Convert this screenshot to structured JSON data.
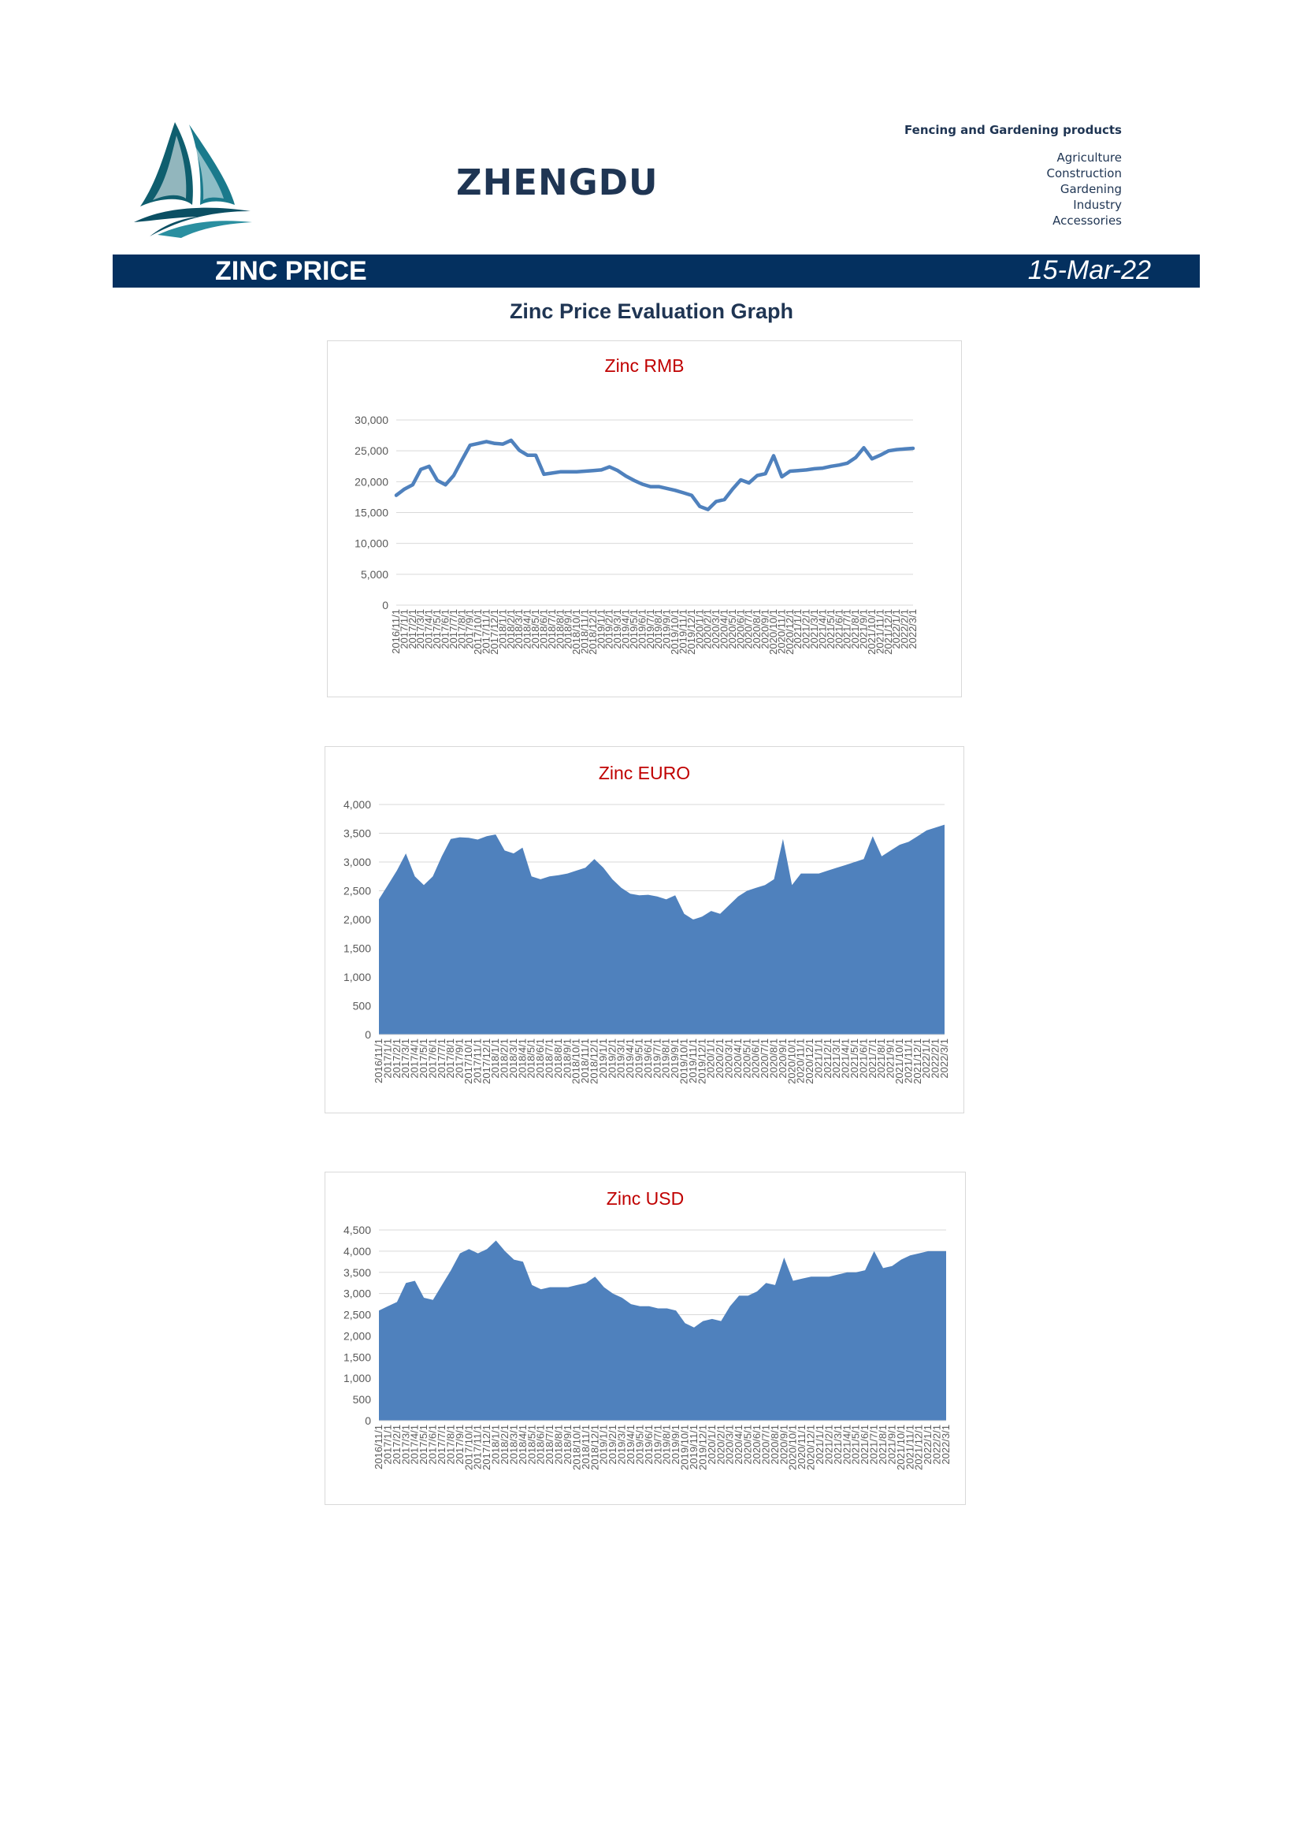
{
  "header": {
    "brand": "ZHENGDU",
    "tagline": "Fencing and Gardening products",
    "categories": [
      "Agriculture",
      "Construction",
      "Gardening",
      "Industry",
      "Accessories"
    ]
  },
  "banner": {
    "title": "ZINC PRICE",
    "date": "15-Mar-22"
  },
  "section_title": "Zinc Price Evaluation Graph",
  "colors": {
    "navy": "#04305f",
    "series": "#4f81bd",
    "title_red": "#c00000"
  },
  "x_labels": [
    "2016/11/1",
    "2017/1/1",
    "2017/2/1",
    "2017/3/1",
    "2017/4/1",
    "2017/5/1",
    "2017/6/1",
    "2017/7/1",
    "2017/8/1",
    "2017/9/1",
    "2017/10/1",
    "2017/11/1",
    "2017/12/1",
    "2018/1/1",
    "2018/2/1",
    "2018/3/1",
    "2018/4/1",
    "2018/5/1",
    "2018/6/1",
    "2018/7/1",
    "2018/8/1",
    "2018/9/1",
    "2018/10/1",
    "2018/11/1",
    "2018/12/1",
    "2019/1/1",
    "2019/2/1",
    "2019/3/1",
    "2019/4/1",
    "2019/5/1",
    "2019/6/1",
    "2019/7/1",
    "2019/8/1",
    "2019/9/1",
    "2019/10/1",
    "2019/11/1",
    "2019/12/1",
    "2020/1/1",
    "2020/2/1",
    "2020/3/1",
    "2020/4/1",
    "2020/5/1",
    "2020/6/1",
    "2020/7/1",
    "2020/8/1",
    "2020/9/1",
    "2020/10/1",
    "2020/11/1",
    "2020/12/1",
    "2021/1/1",
    "2021/2/1",
    "2021/3/1",
    "2021/4/1",
    "2021/5/1",
    "2021/6/1",
    "2021/7/1",
    "2021/8/1",
    "2021/9/1",
    "2021/10/1",
    "2021/11/1",
    "2021/12/1",
    "2022/1/1",
    "2022/2/1",
    "2022/3/1"
  ],
  "chart_data": [
    {
      "type": "line",
      "title": "Zinc RMB",
      "ylim": [
        0,
        30000
      ],
      "yticks": [
        0,
        5000,
        10000,
        15000,
        20000,
        25000,
        30000
      ],
      "y_tick_labels": [
        "0",
        "5,000",
        "10,000",
        "15,000",
        "20,000",
        "25,000",
        "30,000"
      ],
      "grid": true,
      "series": [
        {
          "values": [
            17800,
            18800,
            19500,
            22000,
            22500,
            20200,
            19500,
            21000,
            23500,
            25900,
            26200,
            26500,
            26200,
            26100,
            26700,
            25100,
            24300,
            24300,
            21200,
            21400,
            21600,
            21600,
            21600,
            21700,
            21800,
            21900,
            22400,
            21800,
            20900,
            20200,
            19600,
            19200,
            19200,
            18900,
            18600,
            18200,
            17800,
            16000,
            15500,
            16800,
            17100,
            18800,
            20300,
            19800,
            21000,
            21300,
            24200,
            20800,
            21700,
            21800,
            21900,
            22100,
            22200,
            22500,
            22700,
            23000,
            23900,
            25500,
            23700,
            24300,
            25000,
            25200,
            25300,
            25400
          ]
        }
      ]
    },
    {
      "type": "area",
      "title": "Zinc EURO",
      "ylim": [
        0,
        4000
      ],
      "yticks": [
        0,
        500,
        1000,
        1500,
        2000,
        2500,
        3000,
        3500,
        4000
      ],
      "y_tick_labels": [
        "0",
        "500",
        "1,000",
        "1,500",
        "2,000",
        "2,500",
        "3,000",
        "3,500",
        "4,000"
      ],
      "grid": true,
      "series": [
        {
          "values": [
            2350,
            2600,
            2850,
            3150,
            2750,
            2600,
            2750,
            3100,
            3400,
            3430,
            3420,
            3390,
            3450,
            3480,
            3200,
            3150,
            3250,
            2750,
            2700,
            2750,
            2770,
            2800,
            2850,
            2900,
            3050,
            2900,
            2700,
            2550,
            2450,
            2420,
            2430,
            2400,
            2350,
            2420,
            2100,
            2000,
            2050,
            2150,
            2100,
            2250,
            2400,
            2500,
            2550,
            2600,
            2700,
            3400,
            2600,
            2800,
            2800,
            2800,
            2850,
            2900,
            2950,
            3000,
            3050,
            3450,
            3100,
            3200,
            3300,
            3350,
            3450,
            3550,
            3600,
            3650
          ]
        }
      ]
    },
    {
      "type": "area",
      "title": "Zinc USD",
      "ylim": [
        0,
        4500
      ],
      "yticks": [
        0,
        500,
        1000,
        1500,
        2000,
        2500,
        3000,
        3500,
        4000,
        4500
      ],
      "y_tick_labels": [
        "0",
        "500",
        "1,000",
        "1,500",
        "2,000",
        "2,500",
        "3,000",
        "3,500",
        "4,000",
        "4,500"
      ],
      "grid": true,
      "series": [
        {
          "values": [
            2600,
            2700,
            2800,
            3250,
            3300,
            2900,
            2850,
            3200,
            3550,
            3950,
            4050,
            3950,
            4050,
            4250,
            4000,
            3800,
            3750,
            3200,
            3100,
            3150,
            3150,
            3150,
            3200,
            3250,
            3400,
            3150,
            3000,
            2900,
            2750,
            2700,
            2700,
            2650,
            2650,
            2600,
            2300,
            2200,
            2350,
            2400,
            2350,
            2700,
            2950,
            2950,
            3050,
            3250,
            3200,
            3850,
            3300,
            3350,
            3400,
            3400,
            3400,
            3450,
            3500,
            3500,
            3550,
            4000,
            3600,
            3650,
            3800,
            3900,
            3950,
            4000,
            4000,
            4000
          ]
        }
      ]
    }
  ]
}
